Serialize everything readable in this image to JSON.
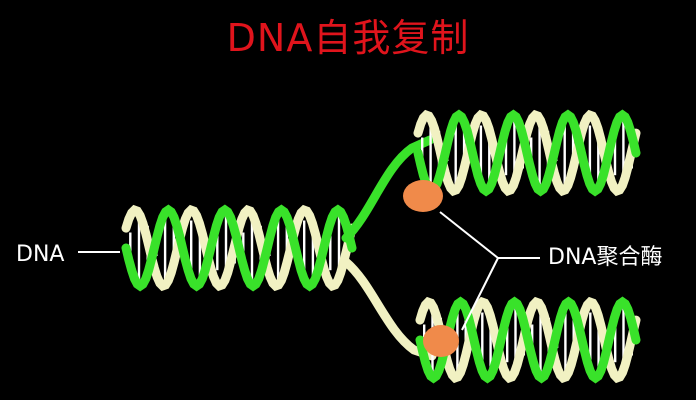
{
  "title": "DNA自我复制",
  "labels": {
    "dna": "DNA",
    "polymerase": "DNA聚合酶"
  },
  "colors": {
    "background": "#000000",
    "title": "#e0141c",
    "label": "#ffffff",
    "strand_green": "#39e22a",
    "strand_cream": "#f1f1c2",
    "base_pair": "#ffffff",
    "enzyme": "#f08a4a",
    "pointer": "#ffffff"
  },
  "diagram": {
    "parent_helix_turns": 4,
    "daughter_helix_turns": 4,
    "enzyme_count": 2
  }
}
